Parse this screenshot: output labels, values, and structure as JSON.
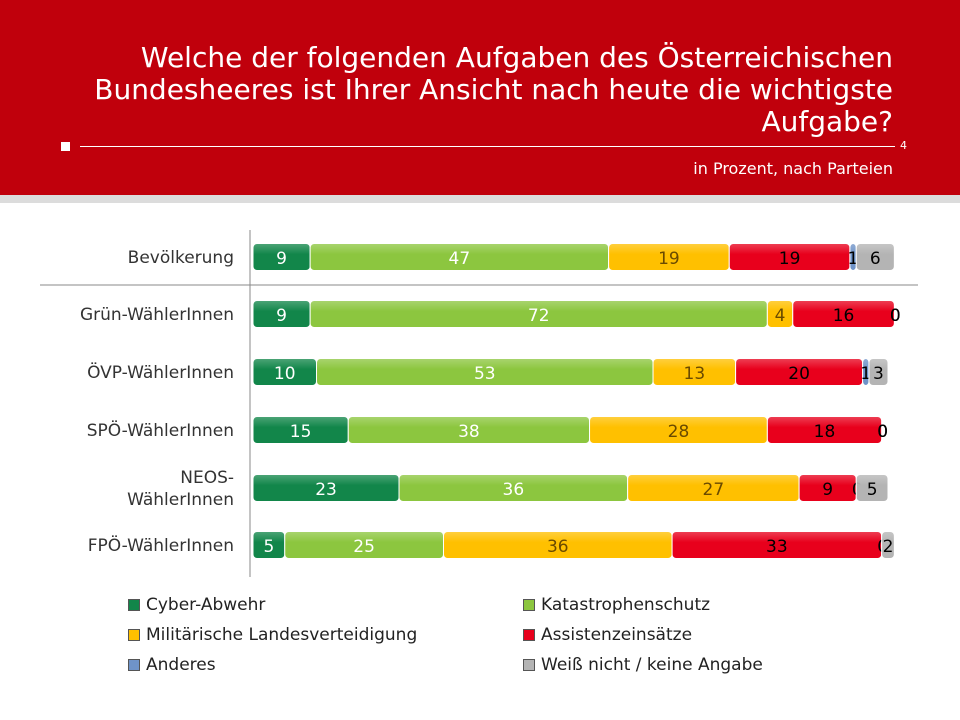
{
  "header": {
    "title_lines": [
      "Welche der folgenden Aufgaben des Österreichischen",
      "Bundesheeres ist Ihrer Ansicht nach heute die wichtigste",
      "Aufgabe?"
    ],
    "page_number": "4",
    "subtitle": "in Prozent, nach Parteien"
  },
  "chart_data": {
    "type": "bar",
    "orientation": "horizontal",
    "stacked": true,
    "categories": [
      "Bevölkerung",
      "Grün-WählerInnen",
      "ÖVP-WählerInnen",
      "SPÖ-WählerInnen",
      "NEOS-WählerInnen",
      "FPÖ-WählerInnen"
    ],
    "category_lines": [
      [
        "Bevölkerung"
      ],
      [
        "Grün-WählerInnen"
      ],
      [
        "ÖVP-WählerInnen"
      ],
      [
        "SPÖ-WählerInnen"
      ],
      [
        "NEOS-",
        "WählerInnen"
      ],
      [
        "FPÖ-WählerInnen"
      ]
    ],
    "series": [
      {
        "name": "Cyber-Abwehr",
        "color": "#12864a",
        "label_color": "#ffffff",
        "values": [
          9,
          9,
          10,
          15,
          23,
          5
        ]
      },
      {
        "name": "Katastrophenschutz",
        "color": "#8cc63f",
        "label_color": "#ffffff",
        "values": [
          47,
          72,
          53,
          38,
          36,
          25
        ]
      },
      {
        "name": "Militärische Landesverteidigung",
        "color": "#ffc000",
        "label_color": "#6a4a00",
        "values": [
          19,
          4,
          13,
          28,
          27,
          36
        ]
      },
      {
        "name": "Assistenzeinsätze",
        "color": "#e8001c",
        "label_color": "#000000",
        "values": [
          19,
          16,
          20,
          18,
          9,
          33
        ]
      },
      {
        "name": "Anderes",
        "color": "#6f93c8",
        "label_color": "#000000",
        "values": [
          1,
          0,
          1,
          0,
          0,
          0
        ]
      },
      {
        "name": "Weiß nicht / keine Angabe",
        "color": "#b4b4b4",
        "label_color": "#000000",
        "values": [
          6,
          0,
          3,
          0,
          5,
          2
        ]
      }
    ],
    "xlim": [
      0,
      100
    ],
    "grid": false,
    "legend_position": "bottom"
  }
}
